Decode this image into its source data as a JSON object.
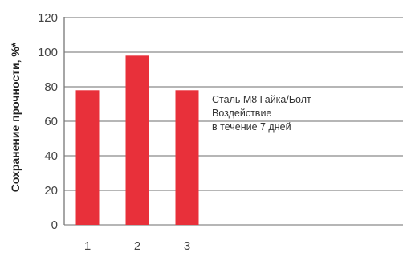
{
  "chart_data": {
    "type": "bar",
    "categories": [
      "1",
      "2",
      "3"
    ],
    "values": [
      78,
      98,
      78
    ],
    "ylabel": "Сохранение прочности, %*",
    "xlabel": "",
    "ylim": [
      0,
      120
    ],
    "yticks": [
      0,
      20,
      40,
      60,
      80,
      100,
      120
    ],
    "grid": "horizontal",
    "bar_color": "#e8303a",
    "annotation": [
      "Сталь М8 Гайка/Болт",
      "Воздействие",
      "в течение 7 дней"
    ]
  }
}
